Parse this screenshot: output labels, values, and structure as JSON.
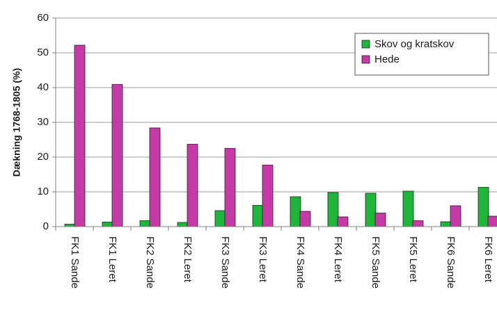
{
  "chart_data": {
    "type": "bar",
    "ylabel": "Dækning 1768-1805 (%)",
    "ylim": [
      0,
      60
    ],
    "yticks": [
      0,
      10,
      20,
      30,
      40,
      50,
      60
    ],
    "grid": true,
    "legend_position": "top-right",
    "categories": [
      "FK1 Sande",
      "FK1 Leret",
      "FK2 Sande",
      "FK2 Leret",
      "FK3 Sande",
      "FK3 Leret",
      "FK4 Sande",
      "FK4 Leret",
      "FK5 Sande",
      "FK5 Leret",
      "FK6 Sande",
      "FK6 Leret"
    ],
    "series": [
      {
        "name": "Skov og kratskov",
        "color": "#1eb53a",
        "values": [
          0.7,
          1.3,
          1.7,
          1.2,
          4.6,
          6.1,
          8.6,
          9.8,
          9.6,
          10.2,
          1.4,
          11.3
        ]
      },
      {
        "name": "Hede",
        "color": "#c63aa8",
        "values": [
          52.2,
          40.9,
          28.4,
          23.7,
          22.5,
          17.7,
          4.4,
          2.8,
          3.9,
          1.7,
          6.0,
          3.0
        ]
      }
    ]
  }
}
